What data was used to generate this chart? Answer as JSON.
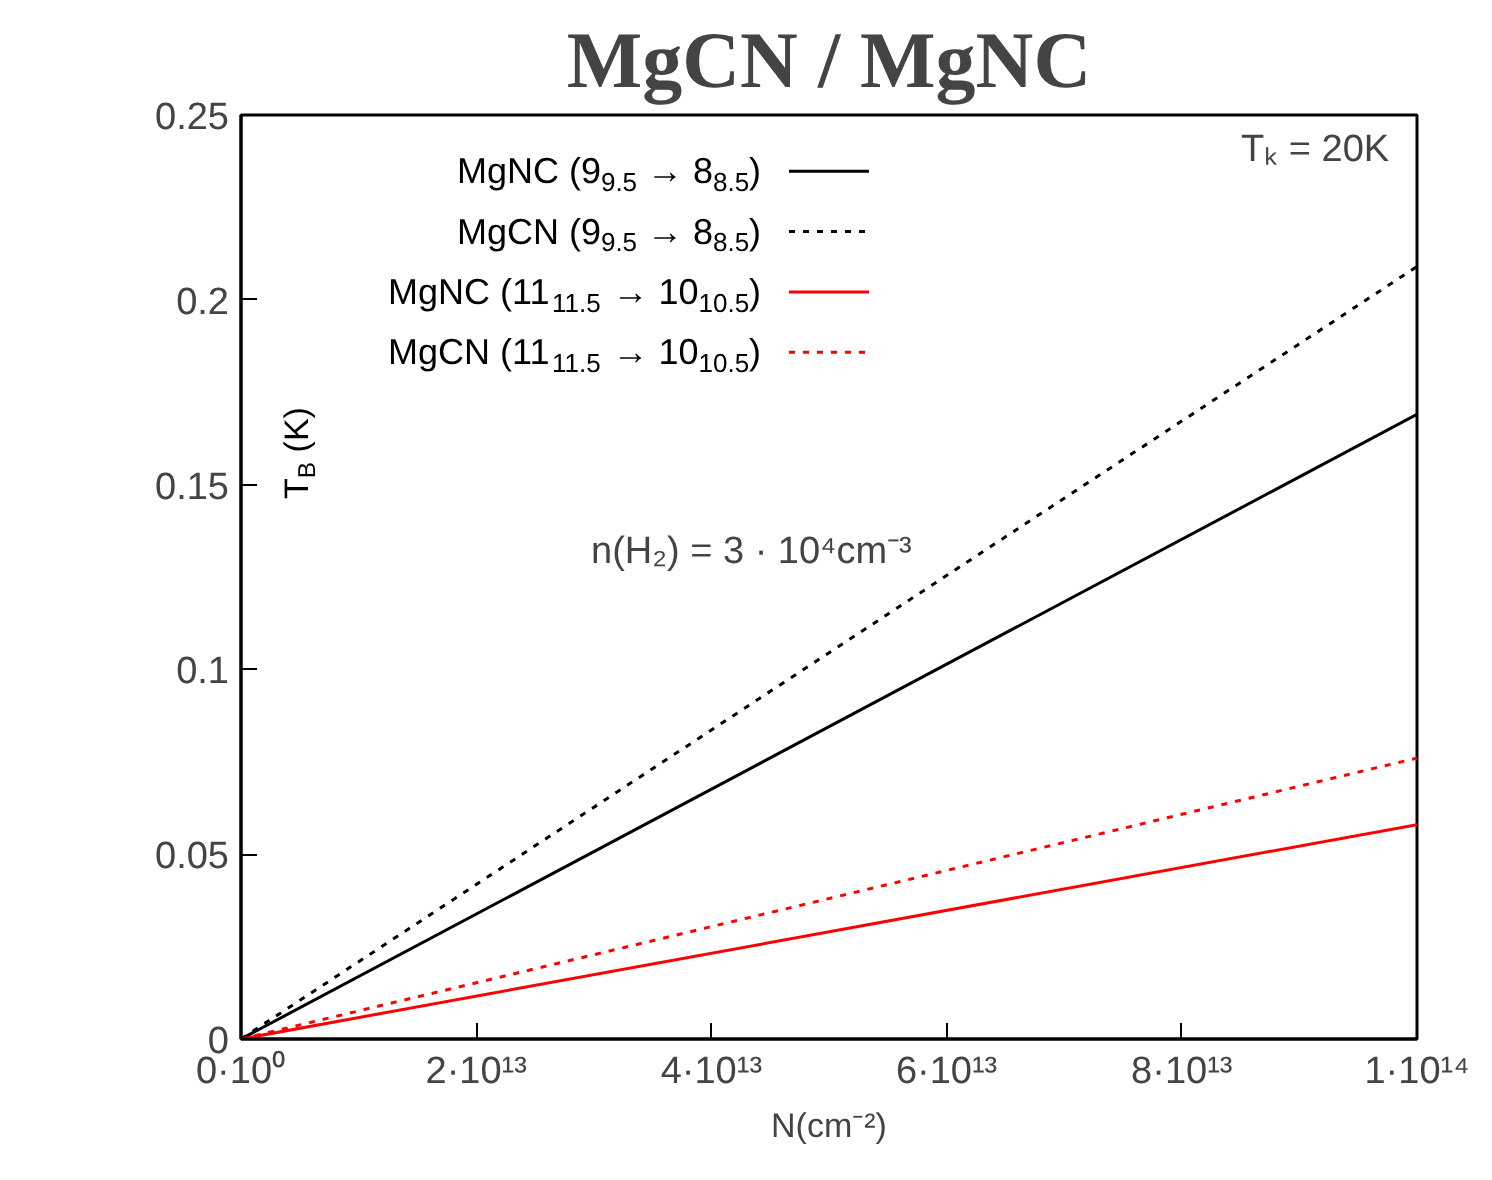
{
  "chart_data": {
    "type": "line",
    "title": "MgCN / MgNC",
    "xlabel": "N(cm⁻²)",
    "ylabel": "T$_{B}$ (K)",
    "x": [
      0,
      100000000000000.0
    ],
    "series": [
      {
        "name": "MgNC (9$_{9.5}$ → 8$_{8.5}$)",
        "color": "#000000",
        "line_style": "solid",
        "values": [
          0,
          0.169
        ]
      },
      {
        "name": "MgCN (9$_{9.5}$ → 8$_{8.5}$)",
        "color": "#000000",
        "line_style": "dotted",
        "values": [
          0,
          0.209
        ]
      },
      {
        "name": "MgNC (11$_{11.5}$ → 10$_{10.5}$)",
        "color": "#ff0000",
        "line_style": "solid",
        "values": [
          0,
          0.058
        ]
      },
      {
        "name": "MgCN (11$_{11.5}$ → 10$_{10.5}$)",
        "color": "#ff0000",
        "line_style": "dotted",
        "values": [
          0,
          0.076
        ]
      }
    ],
    "xlim": [
      0,
      100000000000000.0
    ],
    "xticks": [
      {
        "value": 0,
        "label": "0·10⁰"
      },
      {
        "value": 20000000000000.0,
        "label": "2·10¹³"
      },
      {
        "value": 40000000000000.0,
        "label": "4·10¹³"
      },
      {
        "value": 60000000000000.0,
        "label": "6·10¹³"
      },
      {
        "value": 80000000000000.0,
        "label": "8·10¹³"
      },
      {
        "value": 100000000000000.0,
        "label": "1·10¹⁴"
      }
    ],
    "ylim": [
      0,
      0.25
    ],
    "yticks": [
      0,
      0.05,
      0.1,
      0.15,
      0.2,
      0.25
    ],
    "annotations": [
      "Tₖ = 20K",
      "n(H₂) = 3 · 10⁴cm⁻³"
    ],
    "legend": "top",
    "grid": false,
    "marker": "none"
  }
}
